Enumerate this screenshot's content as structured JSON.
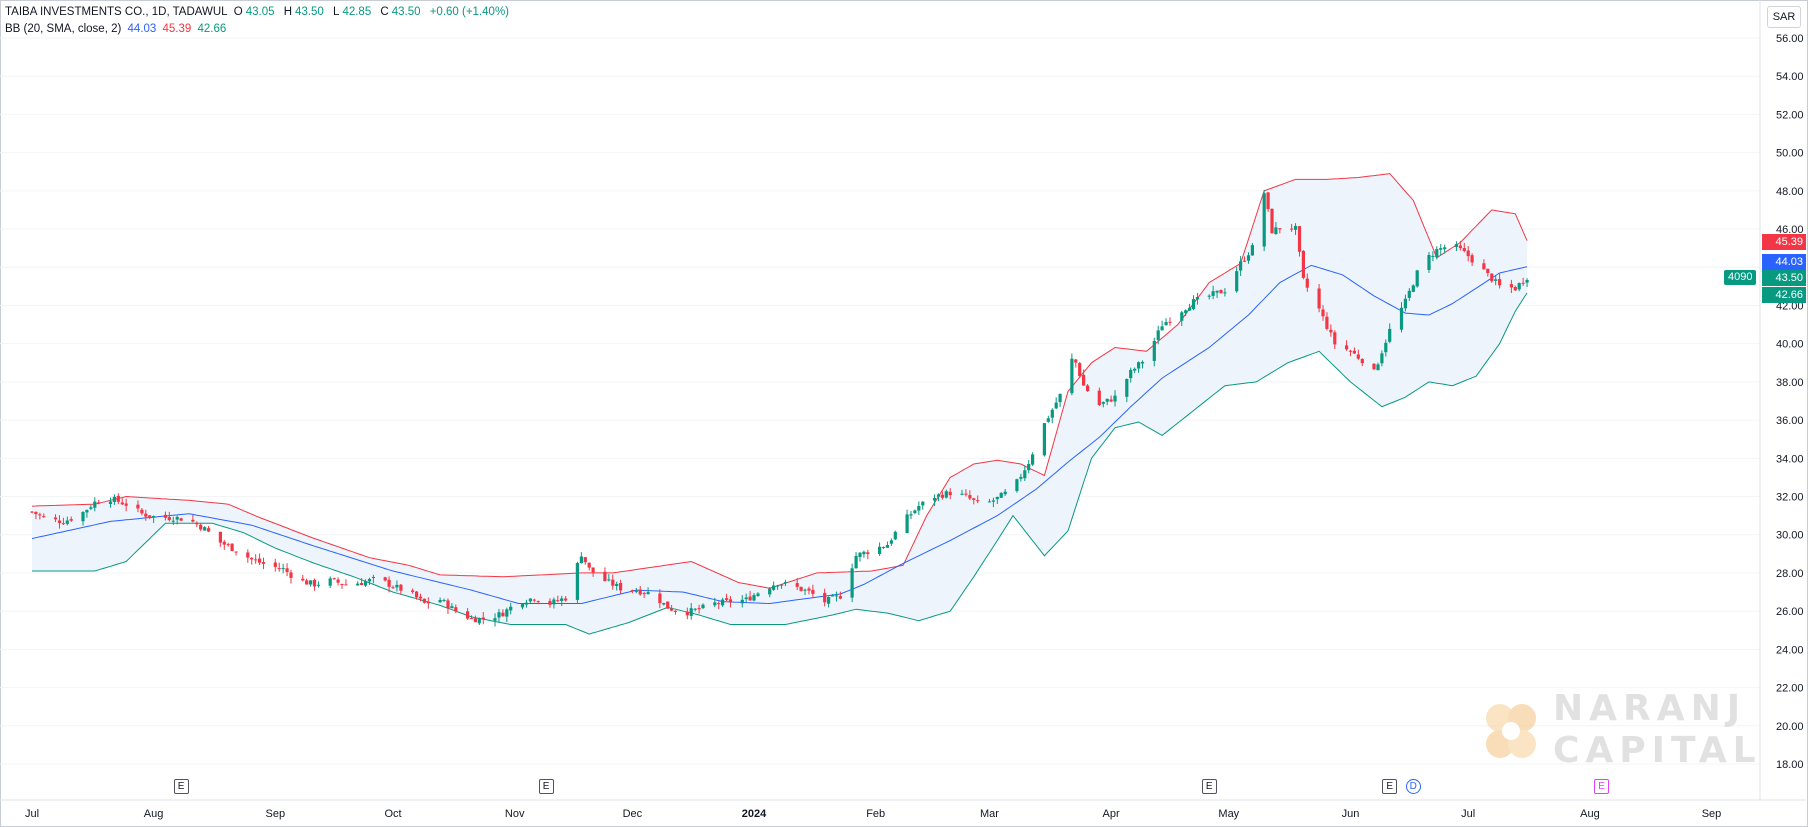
{
  "legend": {
    "symbol": "TAIBA INVESTMENTS CO., 1D, TADAWUL",
    "o_label": "O",
    "o": "43.05",
    "h_label": "H",
    "h": "43.50",
    "l_label": "L",
    "l": "42.85",
    "c_label": "C",
    "c": "43.50",
    "change": "+0.60 (+1.40%)",
    "bb_label": "BB (20, SMA, close, 2)",
    "bb_basis": "44.03",
    "bb_upper": "45.39",
    "bb_lower": "42.66"
  },
  "currency": "SAR",
  "price_tags": {
    "upper": "45.39",
    "basis": "44.03",
    "close": "43.50",
    "lower": "42.66",
    "volume": "4090"
  },
  "events": {
    "earnings": "E",
    "dividend": "D"
  },
  "watermark": {
    "line1": "NARANJ",
    "line2": "CAPITAL"
  },
  "colors": {
    "up": "#089981",
    "down": "#f23645",
    "basis": "#2962ff",
    "upper": "#f23645",
    "lower": "#089981",
    "band_fill": "#eef4fb"
  },
  "chart_data": {
    "type": "candlestick",
    "title": "TAIBA INVESTMENTS CO., 1D, TADAWUL",
    "ylim": [
      17,
      57
    ],
    "y_ticks": [
      "56.00",
      "54.00",
      "52.00",
      "50.00",
      "48.00",
      "46.00",
      "44.00",
      "42.00",
      "40.00",
      "38.00",
      "36.00",
      "34.00",
      "32.00",
      "30.00",
      "28.00",
      "26.00",
      "24.00",
      "22.00",
      "20.00",
      "18.00"
    ],
    "x_ticks": [
      "Jul",
      "Aug",
      "Sep",
      "Oct",
      "Nov",
      "Dec",
      "2024",
      "Feb",
      "Mar",
      "Apr",
      "May",
      "Jun",
      "Jul",
      "Aug",
      "Sep"
    ],
    "x_tick_days": [
      0,
      31,
      62,
      92,
      123,
      153,
      184,
      215,
      244,
      275,
      305,
      336,
      366,
      397,
      428
    ],
    "last_day": 381,
    "days_visible": [
      0,
      458
    ],
    "close_keypoints": [
      [
        0,
        31.2
      ],
      [
        4,
        30.8
      ],
      [
        8,
        30.7
      ],
      [
        12,
        31.0
      ],
      [
        16,
        31.7
      ],
      [
        20,
        31.9
      ],
      [
        24,
        31.6
      ],
      [
        28,
        31.1
      ],
      [
        32,
        30.9
      ],
      [
        36,
        30.9
      ],
      [
        40,
        30.8
      ],
      [
        44,
        30.3
      ],
      [
        48,
        29.6
      ],
      [
        52,
        29.2
      ],
      [
        56,
        28.7
      ],
      [
        60,
        28.4
      ],
      [
        64,
        28.2
      ],
      [
        68,
        27.6
      ],
      [
        72,
        27.4
      ],
      [
        76,
        27.6
      ],
      [
        80,
        27.4
      ],
      [
        84,
        27.5
      ],
      [
        88,
        27.7
      ],
      [
        92,
        27.3
      ],
      [
        96,
        27.0
      ],
      [
        100,
        26.4
      ],
      [
        104,
        26.6
      ],
      [
        108,
        26.0
      ],
      [
        112,
        25.6
      ],
      [
        116,
        25.6
      ],
      [
        120,
        25.9
      ],
      [
        124,
        26.5
      ],
      [
        128,
        26.7
      ],
      [
        132,
        26.4
      ],
      [
        136,
        26.7
      ],
      [
        140,
        29.0
      ],
      [
        142,
        28.2
      ],
      [
        146,
        27.6
      ],
      [
        150,
        27.2
      ],
      [
        154,
        27.1
      ],
      [
        158,
        26.9
      ],
      [
        162,
        26.2
      ],
      [
        166,
        25.9
      ],
      [
        170,
        26.1
      ],
      [
        174,
        26.4
      ],
      [
        178,
        26.5
      ],
      [
        182,
        26.6
      ],
      [
        186,
        27.1
      ],
      [
        190,
        27.5
      ],
      [
        194,
        27.3
      ],
      [
        198,
        27.0
      ],
      [
        202,
        26.5
      ],
      [
        206,
        26.8
      ],
      [
        210,
        28.9
      ],
      [
        214,
        29.2
      ],
      [
        218,
        29.5
      ],
      [
        222,
        30.7
      ],
      [
        226,
        31.5
      ],
      [
        230,
        32.0
      ],
      [
        234,
        32.2
      ],
      [
        238,
        32.0
      ],
      [
        242,
        31.5
      ],
      [
        246,
        31.9
      ],
      [
        250,
        32.4
      ],
      [
        254,
        33.8
      ],
      [
        258,
        35.8
      ],
      [
        262,
        37.3
      ],
      [
        264,
        39.3
      ],
      [
        266,
        39.0
      ],
      [
        268,
        37.8
      ],
      [
        272,
        36.8
      ],
      [
        276,
        37.2
      ],
      [
        280,
        38.5
      ],
      [
        284,
        39.3
      ],
      [
        288,
        41.0
      ],
      [
        292,
        41.6
      ],
      [
        296,
        42.2
      ],
      [
        300,
        42.5
      ],
      [
        304,
        42.8
      ],
      [
        308,
        44.2
      ],
      [
        312,
        45.3
      ],
      [
        314,
        47.9
      ],
      [
        316,
        45.9
      ],
      [
        320,
        46.2
      ],
      [
        322,
        46.0
      ],
      [
        324,
        43.3
      ],
      [
        328,
        41.8
      ],
      [
        332,
        40.0
      ],
      [
        336,
        39.6
      ],
      [
        340,
        39.0
      ],
      [
        342,
        38.5
      ],
      [
        346,
        40.7
      ],
      [
        350,
        42.2
      ],
      [
        354,
        44.2
      ],
      [
        358,
        44.9
      ],
      [
        362,
        45.2
      ],
      [
        366,
        44.6
      ],
      [
        370,
        43.8
      ],
      [
        374,
        43.0
      ],
      [
        378,
        42.9
      ],
      [
        381,
        43.5
      ]
    ],
    "bb_basis_keypoints": [
      [
        0,
        29.8
      ],
      [
        20,
        30.7
      ],
      [
        40,
        31.1
      ],
      [
        56,
        30.5
      ],
      [
        72,
        29.4
      ],
      [
        92,
        28.1
      ],
      [
        112,
        27.1
      ],
      [
        124,
        26.4
      ],
      [
        140,
        26.4
      ],
      [
        154,
        27.1
      ],
      [
        166,
        27.0
      ],
      [
        176,
        26.5
      ],
      [
        188,
        26.4
      ],
      [
        206,
        26.9
      ],
      [
        212,
        27.4
      ],
      [
        222,
        28.5
      ],
      [
        234,
        29.7
      ],
      [
        246,
        31.0
      ],
      [
        256,
        32.4
      ],
      [
        264,
        33.8
      ],
      [
        272,
        35.1
      ],
      [
        280,
        36.7
      ],
      [
        288,
        38.2
      ],
      [
        300,
        39.8
      ],
      [
        310,
        41.5
      ],
      [
        318,
        43.2
      ],
      [
        326,
        44.1
      ],
      [
        334,
        43.6
      ],
      [
        342,
        42.5
      ],
      [
        350,
        41.6
      ],
      [
        356,
        41.5
      ],
      [
        362,
        42.1
      ],
      [
        368,
        42.9
      ],
      [
        374,
        43.7
      ],
      [
        381,
        44.03
      ]
    ],
    "bb_upper_keypoints": [
      [
        0,
        31.5
      ],
      [
        16,
        31.6
      ],
      [
        24,
        32.0
      ],
      [
        40,
        31.8
      ],
      [
        50,
        31.6
      ],
      [
        58,
        30.9
      ],
      [
        72,
        29.8
      ],
      [
        86,
        28.8
      ],
      [
        96,
        28.4
      ],
      [
        104,
        27.9
      ],
      [
        120,
        27.8
      ],
      [
        140,
        28.0
      ],
      [
        148,
        28.0
      ],
      [
        158,
        28.3
      ],
      [
        168,
        28.6
      ],
      [
        180,
        27.5
      ],
      [
        188,
        27.2
      ],
      [
        200,
        28.0
      ],
      [
        214,
        28.1
      ],
      [
        222,
        28.4
      ],
      [
        228,
        31.0
      ],
      [
        234,
        33.0
      ],
      [
        240,
        33.7
      ],
      [
        246,
        33.9
      ],
      [
        252,
        33.7
      ],
      [
        258,
        33.1
      ],
      [
        264,
        37.5
      ],
      [
        270,
        39.0
      ],
      [
        276,
        39.8
      ],
      [
        284,
        39.6
      ],
      [
        292,
        41.0
      ],
      [
        300,
        43.2
      ],
      [
        308,
        44.2
      ],
      [
        314,
        48.0
      ],
      [
        322,
        48.6
      ],
      [
        330,
        48.6
      ],
      [
        338,
        48.7
      ],
      [
        346,
        48.9
      ],
      [
        352,
        47.5
      ],
      [
        358,
        44.5
      ],
      [
        364,
        45.3
      ],
      [
        372,
        47.0
      ],
      [
        378,
        46.8
      ],
      [
        381,
        45.39
      ]
    ],
    "bb_lower_keypoints": [
      [
        0,
        28.1
      ],
      [
        16,
        28.1
      ],
      [
        24,
        28.6
      ],
      [
        34,
        30.6
      ],
      [
        46,
        30.6
      ],
      [
        54,
        30.1
      ],
      [
        62,
        29.3
      ],
      [
        72,
        28.5
      ],
      [
        82,
        27.8
      ],
      [
        92,
        27.0
      ],
      [
        104,
        26.3
      ],
      [
        112,
        25.7
      ],
      [
        122,
        25.3
      ],
      [
        136,
        25.3
      ],
      [
        142,
        24.8
      ],
      [
        152,
        25.4
      ],
      [
        162,
        26.2
      ],
      [
        170,
        25.8
      ],
      [
        178,
        25.3
      ],
      [
        192,
        25.3
      ],
      [
        204,
        25.8
      ],
      [
        210,
        26.1
      ],
      [
        218,
        25.9
      ],
      [
        226,
        25.5
      ],
      [
        234,
        26.0
      ],
      [
        240,
        27.8
      ],
      [
        246,
        29.7
      ],
      [
        250,
        31.0
      ],
      [
        258,
        28.9
      ],
      [
        264,
        30.2
      ],
      [
        270,
        34.0
      ],
      [
        276,
        35.6
      ],
      [
        282,
        35.9
      ],
      [
        288,
        35.2
      ],
      [
        296,
        36.5
      ],
      [
        304,
        37.8
      ],
      [
        312,
        38.0
      ],
      [
        320,
        39.0
      ],
      [
        328,
        39.6
      ],
      [
        336,
        38.0
      ],
      [
        344,
        36.7
      ],
      [
        350,
        37.2
      ],
      [
        356,
        38.0
      ],
      [
        362,
        37.8
      ],
      [
        368,
        38.3
      ],
      [
        374,
        40.0
      ],
      [
        378,
        41.7
      ],
      [
        381,
        42.66
      ]
    ],
    "event_markers": [
      {
        "type": "E",
        "day": 38
      },
      {
        "type": "E",
        "day": 131
      },
      {
        "type": "E",
        "day": 300
      },
      {
        "type": "E",
        "day": 346
      },
      {
        "type": "D",
        "day": 352
      },
      {
        "type": "E",
        "day": 400
      }
    ]
  }
}
